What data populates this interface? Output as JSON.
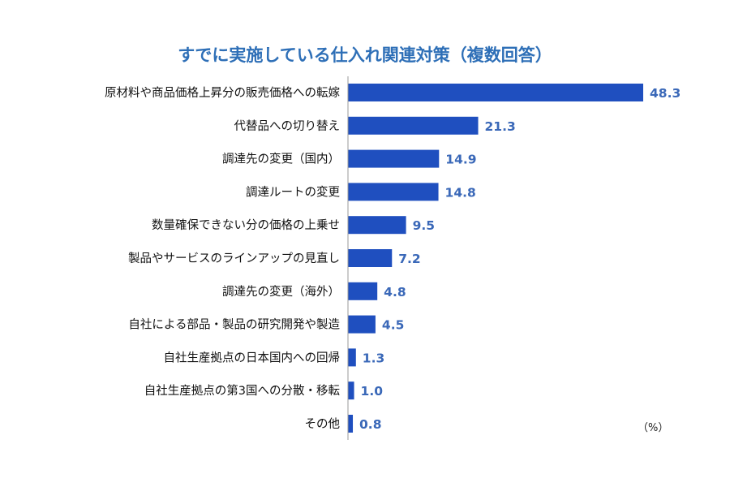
{
  "chart_data": {
    "type": "bar",
    "orientation": "horizontal",
    "title": "すでに実施している仕入れ関連対策（複数回答）",
    "unit_label": "（%）",
    "bar_color": "#1f4fbf",
    "value_label_color": "#3a68b8",
    "title_color": "#2e6fb7",
    "xlim": [
      0,
      50
    ],
    "grid": false,
    "categories": [
      "原材料や商品価格上昇分の販売価格への転嫁",
      "代替品への切り替え",
      "調達先の変更（国内）",
      "調達ルートの変更",
      "数量確保できない分の価格の上乗せ",
      "製品やサービスのラインアップの見直し",
      "調達先の変更（海外）",
      "自社による部品・製品の研究開発や製造",
      "自社生産拠点の日本国内への回帰",
      "自社生産拠点の第3国への分散・移転",
      "その他"
    ],
    "values": [
      48.3,
      21.3,
      14.9,
      14.8,
      9.5,
      7.2,
      4.8,
      4.5,
      1.3,
      1.0,
      0.8
    ],
    "value_labels": [
      "48.3",
      "21.3",
      "14.9",
      "14.8",
      "9.5",
      "7.2",
      "4.8",
      "4.5",
      "1.3",
      "1.0",
      "0.8"
    ]
  }
}
